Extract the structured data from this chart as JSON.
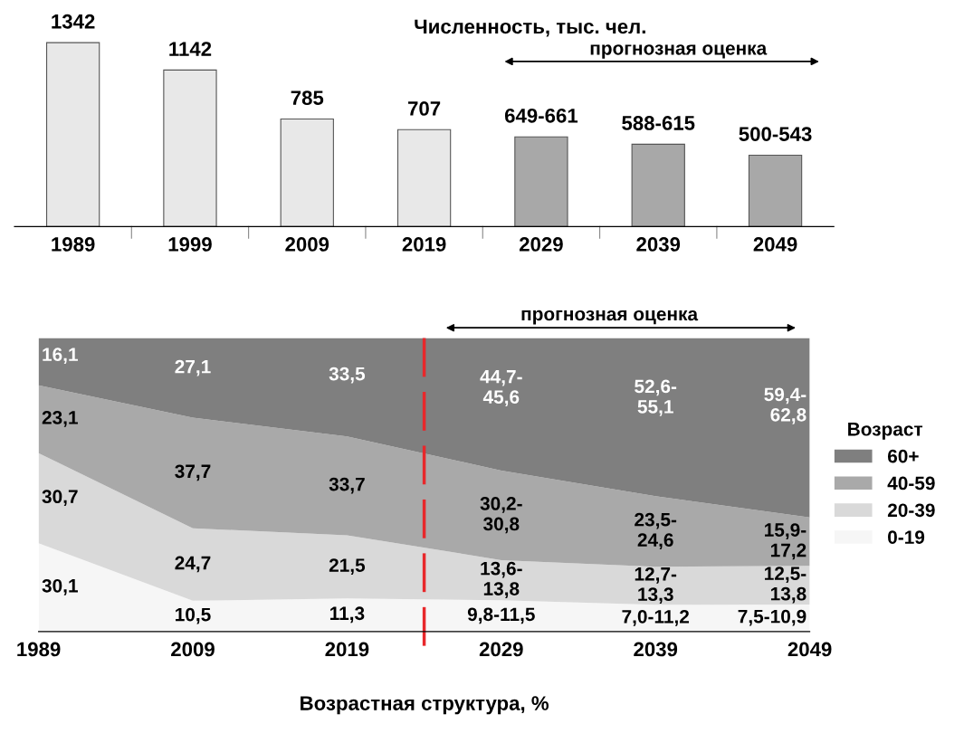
{
  "chart_data": [
    {
      "type": "bar",
      "title": "Численность, тыс. чел.",
      "categories": [
        "1989",
        "1999",
        "2009",
        "2019",
        "2029",
        "2039",
        "2049"
      ],
      "values": [
        1342,
        1142,
        785,
        707,
        655,
        601,
        521
      ],
      "value_labels": [
        "1342",
        "1142",
        "785",
        "707",
        "649-661",
        "588-615",
        "500-543"
      ],
      "colors": [
        "#e8e8e8",
        "#e8e8e8",
        "#e8e8e8",
        "#e8e8e8",
        "#a8a8a8",
        "#a8a8a8",
        "#a8a8a8"
      ],
      "annotations": [
        "прогнозная оценка"
      ]
    },
    {
      "type": "area",
      "stacked": true,
      "xlabel": "Возрастная структура, %",
      "categories": [
        "1989",
        "2009",
        "2019",
        "2029",
        "2039",
        "2049"
      ],
      "series": [
        {
          "name": "0-19",
          "color": "#f6f6f6",
          "values": [
            30.1,
            10.5,
            11.3,
            10.65,
            9.1,
            9.2
          ],
          "value_labels": [
            "30,1",
            "10,5",
            "11,3",
            "9,8-11,5",
            "7,0-11,2",
            "7,5-10,9"
          ]
        },
        {
          "name": "20-39",
          "color": "#d9d9d9",
          "values": [
            30.7,
            24.7,
            21.5,
            13.7,
            13.0,
            13.15
          ],
          "value_labels": [
            "30,7",
            "24,7",
            "21,5",
            "13,6-\n13,8",
            "12,7-\n13,3",
            "12,5-\n13,8"
          ]
        },
        {
          "name": "40-59",
          "color": "#a9a9a9",
          "values": [
            23.1,
            37.7,
            33.7,
            30.5,
            24.05,
            16.55
          ],
          "value_labels": [
            "23,1",
            "37,7",
            "33,7",
            "30,2-\n30,8",
            "23,5-\n24,6",
            "15,9-\n17,2"
          ]
        },
        {
          "name": "60+",
          "color": "#7f7f7f",
          "values": [
            16.1,
            27.1,
            33.5,
            45.15,
            53.85,
            61.1
          ],
          "value_labels": [
            "16,1",
            "27,1",
            "33,5",
            "44,7-\n45,6",
            "52,6-\n55,1",
            "59,4-\n62,8"
          ]
        }
      ],
      "legend": "right",
      "legend_title": "Возраст",
      "annotations": [
        "прогнозная оценка"
      ]
    }
  ]
}
